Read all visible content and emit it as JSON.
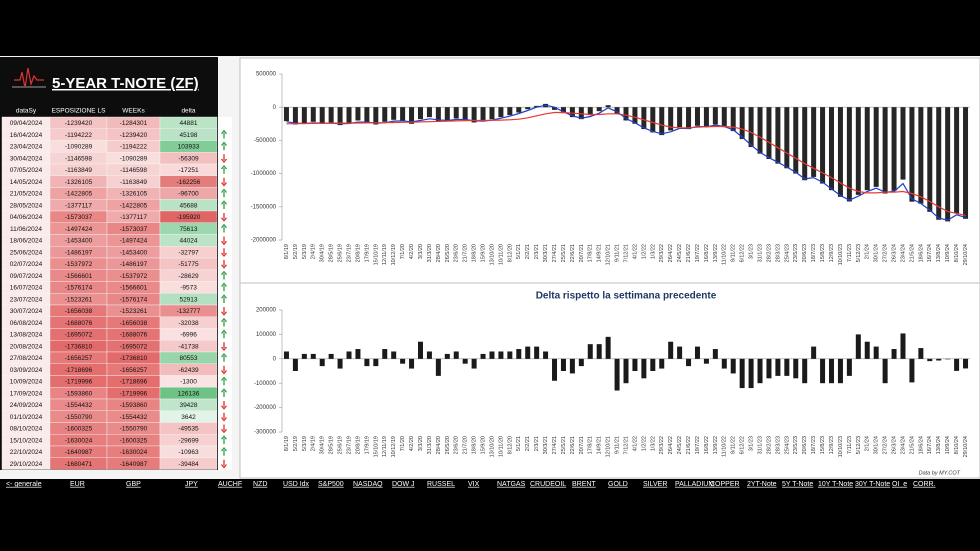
{
  "header": {
    "title": "5-YEAR T-NOTE (ZF)"
  },
  "table": {
    "columns": [
      "dataSy",
      "ESPOSIZIONE LS",
      "WEEKs",
      "delta"
    ],
    "rows": [
      [
        "09/04/2024",
        -1239420,
        -1284301,
        44881
      ],
      [
        "16/04/2024",
        -1194222,
        -1239420,
        45198
      ],
      [
        "23/04/2024",
        -1090289,
        -1194222,
        103933
      ],
      [
        "30/04/2024",
        -1146598,
        -1090289,
        -56309
      ],
      [
        "07/05/2024",
        -1163849,
        -1146598,
        -17251
      ],
      [
        "14/05/2024",
        -1326105,
        -1163849,
        -162256
      ],
      [
        "21/05/2024",
        -1422805,
        -1326105,
        -96700
      ],
      [
        "28/05/2024",
        -1377117,
        -1422805,
        45688
      ],
      [
        "04/06/2024",
        -1573037,
        -1377117,
        -195920
      ],
      [
        "11/06/2024",
        -1497424,
        -1573037,
        75613
      ],
      [
        "18/06/2024",
        -1453400,
        -1497424,
        44024
      ],
      [
        "25/06/2024",
        -1486197,
        -1453400,
        -32797
      ],
      [
        "02/07/2024",
        -1537972,
        -1486197,
        -51775
      ],
      [
        "09/07/2024",
        -1566601,
        -1537972,
        -28629
      ],
      [
        "16/07/2024",
        -1576174,
        -1566601,
        -9573
      ],
      [
        "23/07/2024",
        -1523261,
        -1576174,
        52913
      ],
      [
        "30/07/2024",
        -1656038,
        -1523261,
        -132777
      ],
      [
        "06/08/2024",
        -1688076,
        -1656038,
        -32038
      ],
      [
        "13/08/2024",
        -1695072,
        -1688076,
        -6996
      ],
      [
        "20/08/2024",
        -1736810,
        -1695072,
        -41738
      ],
      [
        "27/08/2024",
        -1656257,
        -1736810,
        80553
      ],
      [
        "03/09/2024",
        -1718696,
        -1656257,
        -62439
      ],
      [
        "10/09/2024",
        -1719996,
        -1718696,
        -1300
      ],
      [
        "17/09/2024",
        -1593860,
        -1719996,
        126136
      ],
      [
        "24/09/2024",
        -1554432,
        -1593860,
        39428
      ],
      [
        "01/10/2024",
        -1550790,
        -1554432,
        3642
      ],
      [
        "08/10/2024",
        -1600325,
        -1550790,
        -49535
      ],
      [
        "15/10/2024",
        -1630024,
        -1600325,
        -29699
      ],
      [
        "22/10/2024",
        -1640987,
        -1630024,
        -10963
      ],
      [
        "29/10/2024",
        -1680471,
        -1640987,
        -39484
      ]
    ],
    "arrows": [
      null,
      "up",
      "up",
      "down",
      "up",
      "down",
      "up",
      "up",
      "down",
      "up",
      "down",
      "down",
      "down",
      "up",
      "up",
      "up",
      "down",
      "up",
      "up",
      "down",
      "up",
      "down",
      "up",
      "up",
      "down",
      "down",
      "down",
      "up",
      "up",
      "down"
    ]
  },
  "chart_data": [
    {
      "type": "bar",
      "categories": [
        "8/1/19",
        "5/2/19",
        "5/3/19",
        "2/4/19",
        "30/4/19",
        "28/5/19",
        "25/6/19",
        "23/7/19",
        "20/8/19",
        "17/9/19",
        "15/10/19",
        "12/11/19",
        "10/12/19",
        "7/1/20",
        "4/2/20",
        "3/3/20",
        "31/3/20",
        "28/4/20",
        "26/5/20",
        "23/6/20",
        "21/7/20",
        "18/8/20",
        "15/9/20",
        "13/10/20",
        "10/11/20",
        "8/12/20",
        "5/1/21",
        "2/2/21",
        "2/3/21",
        "30/3/21",
        "27/4/21",
        "25/5/21",
        "22/6/21",
        "20/7/21",
        "17/8/21",
        "14/9/21",
        "12/10/21",
        "9/11/21",
        "7/12/21",
        "4/1/22",
        "1/2/22",
        "1/3/22",
        "29/3/22",
        "26/4/22",
        "24/5/22",
        "21/6/22",
        "19/7/22",
        "16/8/22",
        "13/9/22",
        "11/10/22",
        "8/11/22",
        "6/12/22",
        "3/1/23",
        "31/1/23",
        "28/2/23",
        "28/3/23",
        "25/4/23",
        "23/5/23",
        "20/6/23",
        "18/7/23",
        "15/8/23",
        "12/9/23",
        "10/10/23",
        "7/11/23",
        "5/12/23",
        "2/1/24",
        "30/1/24",
        "27/2/24",
        "26/3/24",
        "23/4/24",
        "21/5/24",
        "18/6/24",
        "16/7/24",
        "13/8/24",
        "10/9/24",
        "8/10/24",
        "29/10/24"
      ],
      "series": [
        {
          "color": "#262626",
          "values": [
            -210000,
            -260000,
            -240000,
            -220000,
            -250000,
            -230000,
            -270000,
            -240000,
            -200000,
            -230000,
            -260000,
            -220000,
            -190000,
            -210000,
            -250000,
            -180000,
            -150000,
            -220000,
            -200000,
            -170000,
            -190000,
            -230000,
            -210000,
            -180000,
            -150000,
            -120000,
            -80000,
            -30000,
            20000,
            50000,
            -40000,
            -90000,
            -150000,
            -180000,
            -120000,
            -60000,
            30000,
            -100000,
            -200000,
            -250000,
            -330000,
            -380000,
            -420000,
            -350000,
            -300000,
            -330000,
            -280000,
            -300000,
            -260000,
            -300000,
            -360000,
            -480000,
            -600000,
            -700000,
            -780000,
            -850000,
            -920000,
            -1000000,
            -1100000,
            -1050000,
            -1150000,
            -1250000,
            -1350000,
            -1420000,
            -1320000,
            -1250000,
            -1200000,
            -1300000,
            -1260000,
            -1090289,
            -1422805,
            -1453400,
            -1576174,
            -1695072,
            -1719996,
            -1600325,
            -1680471
          ]
        },
        {
          "type": "line",
          "color": "#1f3fcc",
          "values": [
            -220000,
            -240000,
            -245000,
            -235000,
            -240000,
            -240000,
            -250000,
            -245000,
            -225000,
            -225000,
            -240000,
            -235000,
            -210000,
            -205000,
            -220000,
            -200000,
            -175000,
            -190000,
            -200000,
            -185000,
            -185000,
            -205000,
            -210000,
            -195000,
            -165000,
            -135000,
            -95000,
            -50000,
            0,
            30000,
            0,
            -70000,
            -130000,
            -165000,
            -140000,
            -90000,
            -10000,
            -70000,
            -170000,
            -235000,
            -310000,
            -365000,
            -400000,
            -370000,
            -320000,
            -320000,
            -290000,
            -295000,
            -270000,
            -290000,
            -340000,
            -450000,
            -570000,
            -680000,
            -760000,
            -830000,
            -900000,
            -980000,
            -1080000,
            -1060000,
            -1130000,
            -1230000,
            -1330000,
            -1400000,
            -1340000,
            -1270000,
            -1220000,
            -1280000,
            -1270000,
            -1150000,
            -1380000,
            -1450000,
            -1550000,
            -1670000,
            -1700000,
            -1620000,
            -1660000
          ]
        },
        {
          "type": "line",
          "color": "#e8392f",
          "values": [
            -250000,
            -248000,
            -246000,
            -244000,
            -242000,
            -240000,
            -240000,
            -240000,
            -238000,
            -236000,
            -235000,
            -234000,
            -230000,
            -228000,
            -226000,
            -222000,
            -218000,
            -214000,
            -210000,
            -206000,
            -202000,
            -200000,
            -200000,
            -198000,
            -195000,
            -190000,
            -180000,
            -160000,
            -130000,
            -100000,
            -80000,
            -80000,
            -90000,
            -100000,
            -110000,
            -110000,
            -100000,
            -100000,
            -120000,
            -150000,
            -190000,
            -230000,
            -270000,
            -300000,
            -310000,
            -310000,
            -300000,
            -295000,
            -290000,
            -290000,
            -300000,
            -330000,
            -380000,
            -450000,
            -530000,
            -610000,
            -690000,
            -770000,
            -850000,
            -920000,
            -990000,
            -1060000,
            -1140000,
            -1220000,
            -1270000,
            -1290000,
            -1290000,
            -1280000,
            -1280000,
            -1270000,
            -1300000,
            -1350000,
            -1420000,
            -1500000,
            -1570000,
            -1600000,
            -1630000
          ]
        }
      ],
      "ylim": [
        -2000000,
        500000
      ],
      "yticks": [
        500000,
        0,
        -500000,
        -1000000,
        -1500000,
        -2000000
      ]
    },
    {
      "type": "bar",
      "title": "Delta rispetto la settimana precedente",
      "categories": [
        "8/1/19",
        "5/2/19",
        "5/3/19",
        "2/4/19",
        "30/4/19",
        "28/5/19",
        "25/6/19",
        "23/7/19",
        "20/8/19",
        "17/9/19",
        "15/10/19",
        "12/11/19",
        "10/12/19",
        "7/1/20",
        "4/2/20",
        "3/3/20",
        "31/3/20",
        "28/4/20",
        "26/5/20",
        "23/6/20",
        "21/7/20",
        "18/8/20",
        "15/9/20",
        "13/10/20",
        "10/11/20",
        "8/12/20",
        "5/1/21",
        "2/2/21",
        "2/3/21",
        "30/3/21",
        "27/4/21",
        "25/5/21",
        "22/6/21",
        "20/7/21",
        "17/8/21",
        "14/9/21",
        "12/10/21",
        "9/11/21",
        "7/12/21",
        "4/1/22",
        "1/2/22",
        "1/3/22",
        "29/3/22",
        "26/4/22",
        "24/5/22",
        "21/6/22",
        "19/7/22",
        "16/8/22",
        "13/9/22",
        "11/10/22",
        "8/11/22",
        "6/12/22",
        "3/1/23",
        "31/1/23",
        "28/2/23",
        "28/3/23",
        "25/4/23",
        "23/5/23",
        "20/6/23",
        "18/7/23",
        "15/8/23",
        "12/9/23",
        "10/10/23",
        "7/11/23",
        "5/12/23",
        "2/1/24",
        "30/1/24",
        "27/2/24",
        "26/3/24",
        "23/4/24",
        "21/5/24",
        "18/6/24",
        "16/7/24",
        "13/8/24",
        "10/9/24",
        "8/10/24",
        "29/10/24"
      ],
      "series": [
        {
          "color": "#1a1a1a",
          "values": [
            30000,
            -50000,
            20000,
            20000,
            -30000,
            20000,
            -40000,
            30000,
            40000,
            -30000,
            -30000,
            40000,
            30000,
            -20000,
            -40000,
            70000,
            30000,
            -70000,
            20000,
            30000,
            -20000,
            -40000,
            20000,
            30000,
            30000,
            30000,
            40000,
            50000,
            50000,
            30000,
            -90000,
            -50000,
            -60000,
            -30000,
            60000,
            60000,
            90000,
            -130000,
            -100000,
            -50000,
            -80000,
            -50000,
            -40000,
            70000,
            50000,
            -30000,
            50000,
            -20000,
            40000,
            -40000,
            -60000,
            -120000,
            -120000,
            -100000,
            -80000,
            -70000,
            -70000,
            -80000,
            -100000,
            50000,
            -100000,
            -100000,
            -100000,
            -70000,
            100000,
            70000,
            50000,
            -100000,
            40000,
            103933,
            -96700,
            44024,
            -9573,
            -6996,
            -1300,
            -49535,
            -39484
          ]
        }
      ],
      "ylim": [
        -300000,
        200000
      ],
      "yticks": [
        200000,
        100000,
        0,
        -100000,
        -200000,
        -300000
      ]
    }
  ],
  "footer": {
    "source": "Data by MY.COT"
  },
  "tabs": [
    "<- generale",
    "EUR",
    "GBP",
    "JPY",
    "AUCHF",
    "NZD",
    "USD Idx",
    "S&P500",
    "NASDAQ",
    "DOW J",
    "RUSSEL",
    "VIX",
    "NATGAS",
    "CRUDEOIL",
    "BRENT",
    "GOLD",
    "SILVER",
    "PALLADIUM",
    "COPPER",
    "2YT-Note",
    "5Y T-Note",
    "10Y T-Note",
    "30Y T-Note",
    "OI_e",
    "CORR."
  ]
}
